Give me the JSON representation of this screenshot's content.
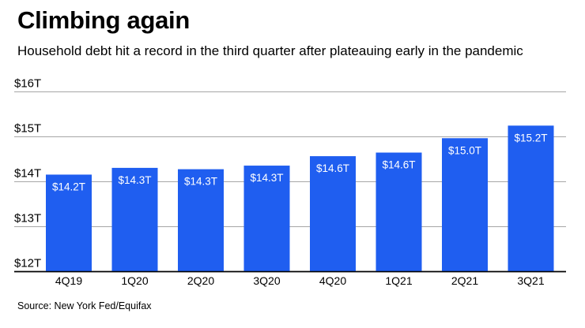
{
  "header": {
    "title": "Climbing again",
    "subtitle": "Household debt hit a record in the third quarter after plateauing early in the pandemic"
  },
  "footer": {
    "source": "Source: New York Fed/Equifax"
  },
  "colors": {
    "bar": "#1f5ef0",
    "grid": "#a6a6a6",
    "baseline": "#000000"
  },
  "chart_data": {
    "type": "bar",
    "title": "Climbing again",
    "subtitle": "Household debt hit a record in the third quarter after plateauing early in the pandemic",
    "categories": [
      "4Q19",
      "1Q20",
      "2Q20",
      "3Q20",
      "4Q20",
      "1Q21",
      "2Q21",
      "3Q21"
    ],
    "values": [
      14.15,
      14.3,
      14.27,
      14.35,
      14.56,
      14.64,
      14.96,
      15.24
    ],
    "data_labels": [
      "$14.2T",
      "$14.3T",
      "$14.3T",
      "$14.3T",
      "$14.6T",
      "$14.6T",
      "$15.0T",
      "$15.2T"
    ],
    "ylim": [
      12,
      16
    ],
    "yticks": [
      12,
      13,
      14,
      15,
      16
    ],
    "ytick_labels": [
      "$12T",
      "$13T",
      "$14T",
      "$15T",
      "$16T"
    ],
    "xlabel": "",
    "ylabel": "",
    "grid": true,
    "legend": "none"
  }
}
